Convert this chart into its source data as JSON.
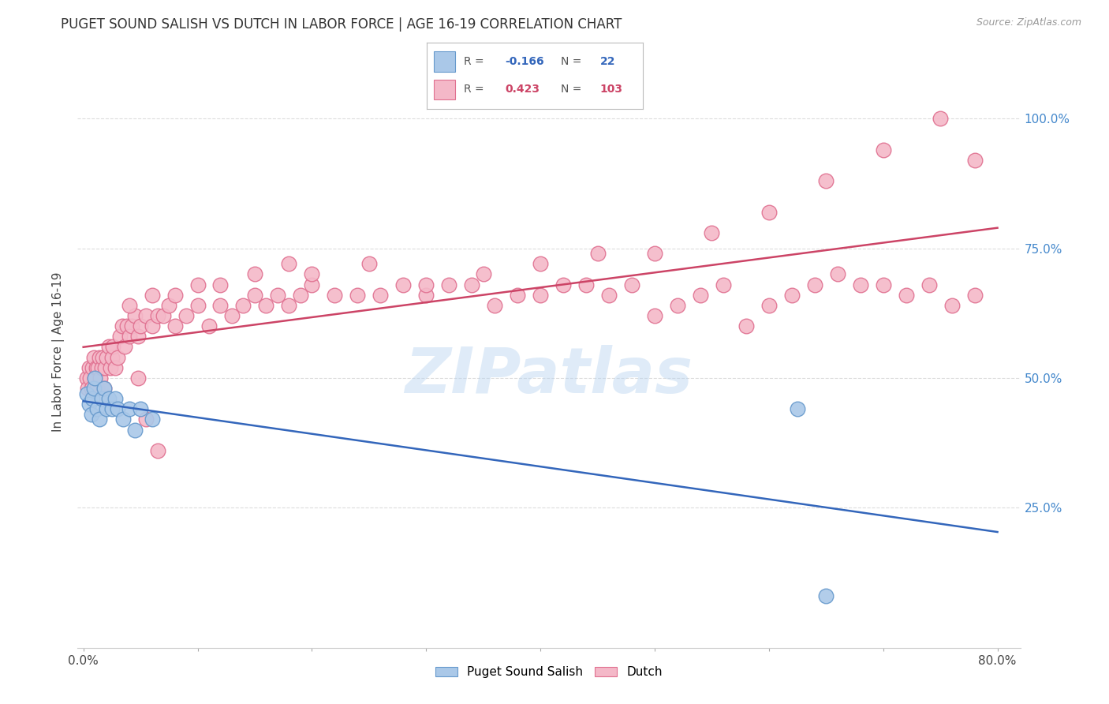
{
  "title": "PUGET SOUND SALISH VS DUTCH IN LABOR FORCE | AGE 16-19 CORRELATION CHART",
  "source": "Source: ZipAtlas.com",
  "ylabel": "In Labor Force | Age 16-19",
  "xlim": [
    -0.005,
    0.82
  ],
  "ylim": [
    -0.02,
    1.12
  ],
  "ytick_labels_right": [
    "25.0%",
    "50.0%",
    "75.0%",
    "100.0%"
  ],
  "ytick_values": [
    0.25,
    0.5,
    0.75,
    1.0
  ],
  "xtick_labels": [
    "0.0%",
    "",
    "",
    "",
    "",
    "",
    "",
    "",
    "80.0%"
  ],
  "xtick_values": [
    0.0,
    0.1,
    0.2,
    0.3,
    0.4,
    0.5,
    0.6,
    0.7,
    0.8
  ],
  "r_salish": -0.166,
  "n_salish": 22,
  "r_dutch": 0.423,
  "n_dutch": 103,
  "salish_color": "#aac8e8",
  "dutch_color": "#f4b8c8",
  "salish_edge_color": "#6699cc",
  "dutch_edge_color": "#e07090",
  "trend_salish_color": "#3366bb",
  "trend_dutch_color": "#cc4466",
  "background_color": "#ffffff",
  "grid_color": "#dddddd",
  "watermark": "ZIPatlas",
  "salish_x": [
    0.003,
    0.005,
    0.007,
    0.008,
    0.009,
    0.01,
    0.012,
    0.014,
    0.016,
    0.018,
    0.02,
    0.022,
    0.025,
    0.028,
    0.03,
    0.035,
    0.04,
    0.045,
    0.05,
    0.06,
    0.625,
    0.65
  ],
  "salish_y": [
    0.47,
    0.45,
    0.43,
    0.46,
    0.48,
    0.5,
    0.44,
    0.42,
    0.46,
    0.48,
    0.44,
    0.46,
    0.44,
    0.46,
    0.44,
    0.42,
    0.44,
    0.4,
    0.44,
    0.42,
    0.44,
    0.08
  ],
  "dutch_x": [
    0.003,
    0.004,
    0.005,
    0.006,
    0.007,
    0.008,
    0.009,
    0.01,
    0.011,
    0.012,
    0.013,
    0.014,
    0.015,
    0.016,
    0.017,
    0.018,
    0.019,
    0.02,
    0.022,
    0.024,
    0.025,
    0.026,
    0.028,
    0.03,
    0.032,
    0.034,
    0.036,
    0.038,
    0.04,
    0.042,
    0.045,
    0.048,
    0.05,
    0.055,
    0.06,
    0.065,
    0.07,
    0.075,
    0.08,
    0.09,
    0.1,
    0.11,
    0.12,
    0.13,
    0.14,
    0.15,
    0.16,
    0.17,
    0.18,
    0.19,
    0.2,
    0.22,
    0.24,
    0.26,
    0.28,
    0.3,
    0.32,
    0.34,
    0.36,
    0.38,
    0.4,
    0.42,
    0.44,
    0.46,
    0.48,
    0.5,
    0.52,
    0.54,
    0.56,
    0.58,
    0.6,
    0.62,
    0.64,
    0.66,
    0.68,
    0.7,
    0.72,
    0.74,
    0.76,
    0.78,
    0.04,
    0.06,
    0.08,
    0.1,
    0.12,
    0.15,
    0.18,
    0.2,
    0.25,
    0.3,
    0.35,
    0.4,
    0.45,
    0.5,
    0.55,
    0.6,
    0.65,
    0.7,
    0.75,
    0.78,
    0.048,
    0.055,
    0.065
  ],
  "dutch_y": [
    0.5,
    0.48,
    0.52,
    0.5,
    0.48,
    0.52,
    0.54,
    0.5,
    0.52,
    0.48,
    0.52,
    0.54,
    0.5,
    0.52,
    0.54,
    0.48,
    0.52,
    0.54,
    0.56,
    0.52,
    0.54,
    0.56,
    0.52,
    0.54,
    0.58,
    0.6,
    0.56,
    0.6,
    0.58,
    0.6,
    0.62,
    0.58,
    0.6,
    0.62,
    0.6,
    0.62,
    0.62,
    0.64,
    0.6,
    0.62,
    0.64,
    0.6,
    0.64,
    0.62,
    0.64,
    0.66,
    0.64,
    0.66,
    0.64,
    0.66,
    0.68,
    0.66,
    0.66,
    0.66,
    0.68,
    0.66,
    0.68,
    0.68,
    0.64,
    0.66,
    0.66,
    0.68,
    0.68,
    0.66,
    0.68,
    0.62,
    0.64,
    0.66,
    0.68,
    0.6,
    0.64,
    0.66,
    0.68,
    0.7,
    0.68,
    0.68,
    0.66,
    0.68,
    0.64,
    0.66,
    0.64,
    0.66,
    0.66,
    0.68,
    0.68,
    0.7,
    0.72,
    0.7,
    0.72,
    0.68,
    0.7,
    0.72,
    0.74,
    0.74,
    0.78,
    0.82,
    0.88,
    0.94,
    1.0,
    0.92,
    0.5,
    0.42,
    0.36
  ]
}
